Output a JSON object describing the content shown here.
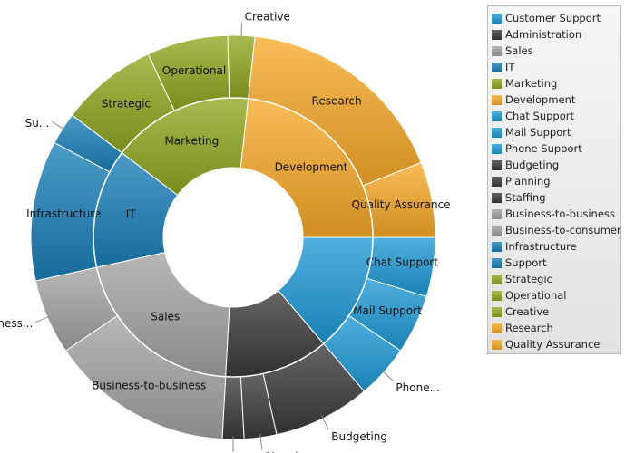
{
  "chart_data": {
    "type": "sunburst",
    "colors": {
      "Customer Support": "#1e9ad6",
      "Administration": "#3a3a3a",
      "Sales": "#a3a3a3",
      "IT": "#1a7fb8",
      "Marketing": "#8fa81f",
      "Development": "#f8a928"
    },
    "inner": [
      {
        "name": "Customer Support",
        "value": 16,
        "label": "",
        "color": "#1e9ad6"
      },
      {
        "name": "Administration",
        "value": 14,
        "label": "",
        "color": "#3a3a3a"
      },
      {
        "name": "Sales",
        "value": 24,
        "label": "Sales",
        "color": "#a3a3a3"
      },
      {
        "name": "IT",
        "value": 16,
        "label": "IT",
        "color": "#1a7fb8"
      },
      {
        "name": "Marketing",
        "value": 19,
        "label": "Marketing",
        "color": "#8fa81f"
      },
      {
        "name": "Development",
        "value": 27,
        "label": "Development",
        "color": "#f8a928"
      }
    ],
    "outer": [
      {
        "name": "Chat Support",
        "parent": "Customer Support",
        "value": 5.5,
        "label": "Chat Support",
        "label_mode": "inside",
        "color": "#1e9ad6"
      },
      {
        "name": "Mail Support",
        "parent": "Customer Support",
        "value": 5.5,
        "label": "Mail Support",
        "label_mode": "inside",
        "color": "#1e9ad6"
      },
      {
        "name": "Phone Support",
        "parent": "Customer Support",
        "value": 5,
        "label": "Phone...",
        "label_mode": "callout",
        "color": "#1e9ad6"
      },
      {
        "name": "Budgeting",
        "parent": "Administration",
        "value": 9,
        "label": "Budgeting",
        "label_mode": "callout",
        "color": "#3a3a3a"
      },
      {
        "name": "Planning",
        "parent": "Administration",
        "value": 3,
        "label": "Planning",
        "label_mode": "callout",
        "color": "#3a3a3a"
      },
      {
        "name": "Staffing",
        "parent": "Administration",
        "value": 2,
        "label": "Staffing",
        "label_mode": "callout",
        "color": "#3a3a3a"
      },
      {
        "name": "Business-to-business",
        "parent": "Sales",
        "value": 17,
        "label": "Business-to-business",
        "label_mode": "inside",
        "color": "#a3a3a3"
      },
      {
        "name": "Business-to-consumer",
        "parent": "Sales",
        "value": 7,
        "label": "Business...",
        "label_mode": "callout",
        "color": "#a3a3a3"
      },
      {
        "name": "Infrastructure",
        "parent": "IT",
        "value": 13,
        "label": "Infrastructure",
        "label_mode": "inside",
        "color": "#1a7fb8"
      },
      {
        "name": "Support",
        "parent": "IT",
        "value": 3,
        "label": "Su...",
        "label_mode": "callout",
        "color": "#1a7fb8"
      },
      {
        "name": "Strategic",
        "parent": "Marketing",
        "value": 9,
        "label": "Strategic",
        "label_mode": "inside",
        "color": "#8fa81f"
      },
      {
        "name": "Operational",
        "parent": "Marketing",
        "value": 7.5,
        "label": "Operational",
        "label_mode": "inside",
        "color": "#8fa81f"
      },
      {
        "name": "Creative",
        "parent": "Marketing",
        "value": 2.5,
        "label": "Creative",
        "label_mode": "callout",
        "color": "#8fa81f"
      },
      {
        "name": "Research",
        "parent": "Development",
        "value": 20,
        "label": "Research",
        "label_mode": "inside",
        "color": "#f8a928"
      },
      {
        "name": "Quality Assurance",
        "parent": "Development",
        "value": 7,
        "label": "Quality Assurance",
        "label_mode": "inside",
        "color": "#f8a928"
      }
    ],
    "legend": [
      {
        "label": "Customer Support",
        "color": "#1e9ad6"
      },
      {
        "label": "Administration",
        "color": "#3a3a3a"
      },
      {
        "label": "Sales",
        "color": "#a3a3a3"
      },
      {
        "label": "IT",
        "color": "#1a7fb8"
      },
      {
        "label": "Marketing",
        "color": "#8fa81f"
      },
      {
        "label": "Development",
        "color": "#f8a928"
      },
      {
        "label": "Chat Support",
        "color": "#1e9ad6"
      },
      {
        "label": "Mail Support",
        "color": "#1e9ad6"
      },
      {
        "label": "Phone Support",
        "color": "#1e9ad6"
      },
      {
        "label": "Budgeting",
        "color": "#3a3a3a"
      },
      {
        "label": "Planning",
        "color": "#3a3a3a"
      },
      {
        "label": "Staffing",
        "color": "#3a3a3a"
      },
      {
        "label": "Business-to-business",
        "color": "#a3a3a3"
      },
      {
        "label": "Business-to-consumer",
        "color": "#a3a3a3"
      },
      {
        "label": "Infrastructure",
        "color": "#1a7fb8"
      },
      {
        "label": "Support",
        "color": "#1a7fb8"
      },
      {
        "label": "Strategic",
        "color": "#8fa81f"
      },
      {
        "label": "Operational",
        "color": "#8fa81f"
      },
      {
        "label": "Creative",
        "color": "#8fa81f"
      },
      {
        "label": "Research",
        "color": "#f8a928"
      },
      {
        "label": "Quality Assurance",
        "color": "#f8a928"
      }
    ],
    "legend_position": "right"
  }
}
